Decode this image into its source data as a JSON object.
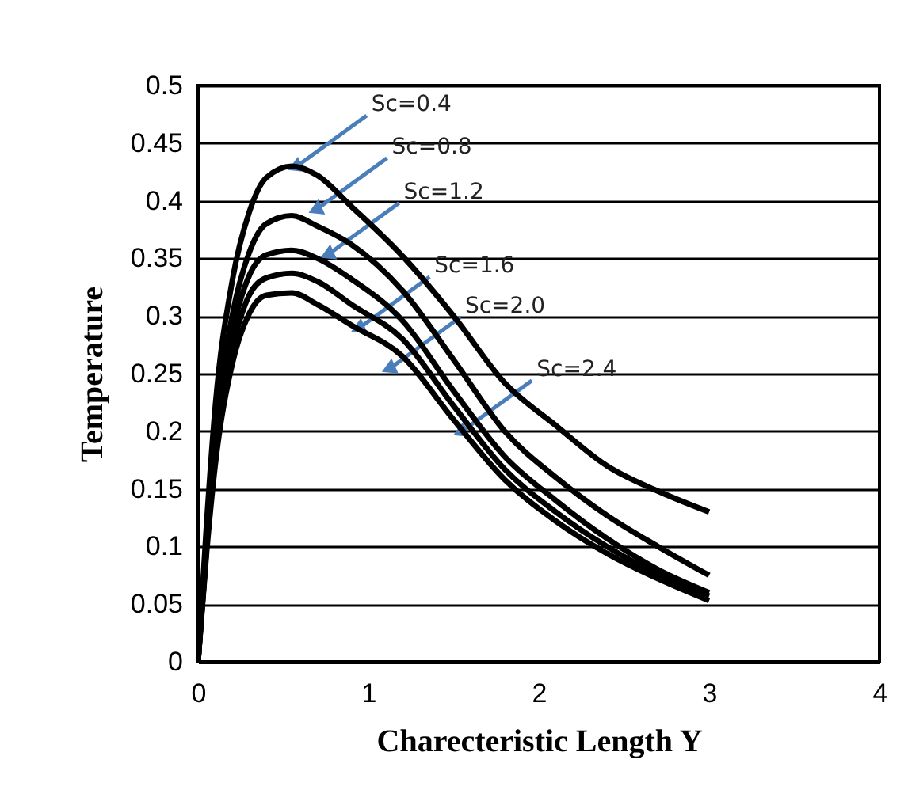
{
  "chart_data": {
    "type": "line",
    "xlabel": "Charecteristic Length Y",
    "ylabel": "Temperature",
    "x": [
      0,
      0.05,
      0.1,
      0.2,
      0.3,
      0.4,
      0.55,
      0.7,
      0.9,
      1.2,
      1.5,
      1.8,
      2.1,
      2.4,
      2.7,
      3.0
    ],
    "series": [
      {
        "color": "#000000",
        "values": [
          0,
          0.12,
          0.22,
          0.33,
          0.39,
          0.42,
          0.43,
          0.422,
          0.395,
          0.352,
          0.3,
          0.242,
          0.205,
          0.17,
          0.148,
          0.13
        ]
      },
      {
        "color": "#000000",
        "values": [
          0,
          0.11,
          0.2,
          0.3,
          0.355,
          0.38,
          0.387,
          0.378,
          0.362,
          0.322,
          0.262,
          0.2,
          0.16,
          0.127,
          0.1,
          0.075
        ]
      },
      {
        "color": "#000000",
        "values": [
          0,
          0.1,
          0.19,
          0.285,
          0.335,
          0.353,
          0.357,
          0.35,
          0.332,
          0.296,
          0.235,
          0.178,
          0.14,
          0.107,
          0.08,
          0.06
        ]
      },
      {
        "color": "#000000",
        "values": [
          0,
          0.1,
          0.18,
          0.27,
          0.318,
          0.333,
          0.337,
          0.33,
          0.31,
          0.28,
          0.222,
          0.167,
          0.13,
          0.1,
          0.076,
          0.057
        ]
      },
      {
        "color": "#000000",
        "values": [
          0,
          0.095,
          0.17,
          0.258,
          0.302,
          0.318,
          0.32,
          0.31,
          0.292,
          0.265,
          0.21,
          0.158,
          0.122,
          0.094,
          0.072,
          0.053
        ]
      }
    ],
    "xlim": [
      0,
      4
    ],
    "xticks": [
      0,
      1,
      2,
      3,
      4
    ],
    "ylim": [
      0,
      0.5
    ],
    "yticks": [
      0,
      0.05,
      0.1,
      0.15,
      0.2,
      0.25,
      0.3,
      0.35,
      0.4,
      0.45,
      0.5
    ],
    "grid": "y",
    "legend": false,
    "marker": "none",
    "line_style": "solid",
    "annotations": [
      {
        "text": "Sc=0.4",
        "x": 0.58,
        "y": 0.43
      },
      {
        "text": "Sc=0.8",
        "x": 0.7,
        "y": 0.393
      },
      {
        "text": "Sc=1.2",
        "x": 0.77,
        "y": 0.354
      },
      {
        "text": "Sc=1.6",
        "x": 0.95,
        "y": 0.29
      },
      {
        "text": "Sc=2.0",
        "x": 1.13,
        "y": 0.255
      },
      {
        "text": "Sc=2.4",
        "x": 1.55,
        "y": 0.2
      }
    ]
  }
}
